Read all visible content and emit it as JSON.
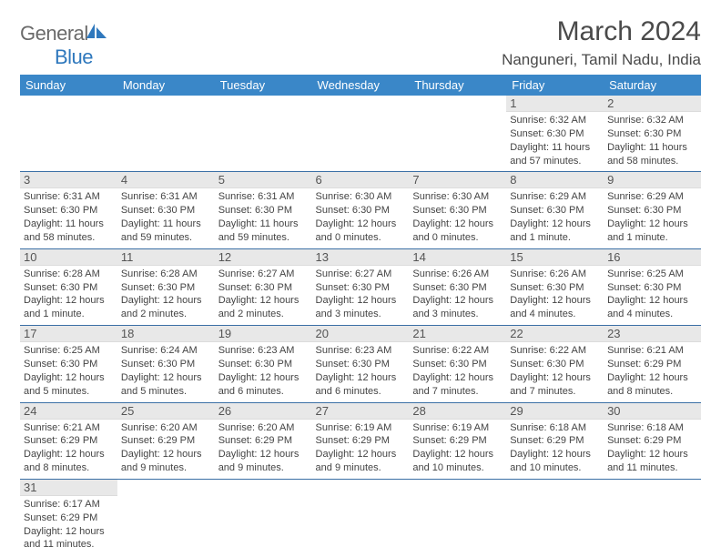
{
  "logo": {
    "general": "General",
    "blue": "Blue"
  },
  "title": "March 2024",
  "location": "Nanguneri, Tamil Nadu, India",
  "colors": {
    "header_bg": "#3a87c8",
    "header_text": "#ffffff",
    "daynum_bg": "#e8e8e8",
    "row_border": "#3a6fa5",
    "logo_gray": "#6a6a6a",
    "logo_blue": "#2f78bd",
    "body_text": "#444444"
  },
  "weekdays": [
    "Sunday",
    "Monday",
    "Tuesday",
    "Wednesday",
    "Thursday",
    "Friday",
    "Saturday"
  ],
  "cells": [
    {
      "day": "",
      "sunrise": "",
      "sunset": "",
      "daylight": ""
    },
    {
      "day": "",
      "sunrise": "",
      "sunset": "",
      "daylight": ""
    },
    {
      "day": "",
      "sunrise": "",
      "sunset": "",
      "daylight": ""
    },
    {
      "day": "",
      "sunrise": "",
      "sunset": "",
      "daylight": ""
    },
    {
      "day": "",
      "sunrise": "",
      "sunset": "",
      "daylight": ""
    },
    {
      "day": "1",
      "sunrise": "Sunrise: 6:32 AM",
      "sunset": "Sunset: 6:30 PM",
      "daylight": "Daylight: 11 hours and 57 minutes."
    },
    {
      "day": "2",
      "sunrise": "Sunrise: 6:32 AM",
      "sunset": "Sunset: 6:30 PM",
      "daylight": "Daylight: 11 hours and 58 minutes."
    },
    {
      "day": "3",
      "sunrise": "Sunrise: 6:31 AM",
      "sunset": "Sunset: 6:30 PM",
      "daylight": "Daylight: 11 hours and 58 minutes."
    },
    {
      "day": "4",
      "sunrise": "Sunrise: 6:31 AM",
      "sunset": "Sunset: 6:30 PM",
      "daylight": "Daylight: 11 hours and 59 minutes."
    },
    {
      "day": "5",
      "sunrise": "Sunrise: 6:31 AM",
      "sunset": "Sunset: 6:30 PM",
      "daylight": "Daylight: 11 hours and 59 minutes."
    },
    {
      "day": "6",
      "sunrise": "Sunrise: 6:30 AM",
      "sunset": "Sunset: 6:30 PM",
      "daylight": "Daylight: 12 hours and 0 minutes."
    },
    {
      "day": "7",
      "sunrise": "Sunrise: 6:30 AM",
      "sunset": "Sunset: 6:30 PM",
      "daylight": "Daylight: 12 hours and 0 minutes."
    },
    {
      "day": "8",
      "sunrise": "Sunrise: 6:29 AM",
      "sunset": "Sunset: 6:30 PM",
      "daylight": "Daylight: 12 hours and 1 minute."
    },
    {
      "day": "9",
      "sunrise": "Sunrise: 6:29 AM",
      "sunset": "Sunset: 6:30 PM",
      "daylight": "Daylight: 12 hours and 1 minute."
    },
    {
      "day": "10",
      "sunrise": "Sunrise: 6:28 AM",
      "sunset": "Sunset: 6:30 PM",
      "daylight": "Daylight: 12 hours and 1 minute."
    },
    {
      "day": "11",
      "sunrise": "Sunrise: 6:28 AM",
      "sunset": "Sunset: 6:30 PM",
      "daylight": "Daylight: 12 hours and 2 minutes."
    },
    {
      "day": "12",
      "sunrise": "Sunrise: 6:27 AM",
      "sunset": "Sunset: 6:30 PM",
      "daylight": "Daylight: 12 hours and 2 minutes."
    },
    {
      "day": "13",
      "sunrise": "Sunrise: 6:27 AM",
      "sunset": "Sunset: 6:30 PM",
      "daylight": "Daylight: 12 hours and 3 minutes."
    },
    {
      "day": "14",
      "sunrise": "Sunrise: 6:26 AM",
      "sunset": "Sunset: 6:30 PM",
      "daylight": "Daylight: 12 hours and 3 minutes."
    },
    {
      "day": "15",
      "sunrise": "Sunrise: 6:26 AM",
      "sunset": "Sunset: 6:30 PM",
      "daylight": "Daylight: 12 hours and 4 minutes."
    },
    {
      "day": "16",
      "sunrise": "Sunrise: 6:25 AM",
      "sunset": "Sunset: 6:30 PM",
      "daylight": "Daylight: 12 hours and 4 minutes."
    },
    {
      "day": "17",
      "sunrise": "Sunrise: 6:25 AM",
      "sunset": "Sunset: 6:30 PM",
      "daylight": "Daylight: 12 hours and 5 minutes."
    },
    {
      "day": "18",
      "sunrise": "Sunrise: 6:24 AM",
      "sunset": "Sunset: 6:30 PM",
      "daylight": "Daylight: 12 hours and 5 minutes."
    },
    {
      "day": "19",
      "sunrise": "Sunrise: 6:23 AM",
      "sunset": "Sunset: 6:30 PM",
      "daylight": "Daylight: 12 hours and 6 minutes."
    },
    {
      "day": "20",
      "sunrise": "Sunrise: 6:23 AM",
      "sunset": "Sunset: 6:30 PM",
      "daylight": "Daylight: 12 hours and 6 minutes."
    },
    {
      "day": "21",
      "sunrise": "Sunrise: 6:22 AM",
      "sunset": "Sunset: 6:30 PM",
      "daylight": "Daylight: 12 hours and 7 minutes."
    },
    {
      "day": "22",
      "sunrise": "Sunrise: 6:22 AM",
      "sunset": "Sunset: 6:30 PM",
      "daylight": "Daylight: 12 hours and 7 minutes."
    },
    {
      "day": "23",
      "sunrise": "Sunrise: 6:21 AM",
      "sunset": "Sunset: 6:29 PM",
      "daylight": "Daylight: 12 hours and 8 minutes."
    },
    {
      "day": "24",
      "sunrise": "Sunrise: 6:21 AM",
      "sunset": "Sunset: 6:29 PM",
      "daylight": "Daylight: 12 hours and 8 minutes."
    },
    {
      "day": "25",
      "sunrise": "Sunrise: 6:20 AM",
      "sunset": "Sunset: 6:29 PM",
      "daylight": "Daylight: 12 hours and 9 minutes."
    },
    {
      "day": "26",
      "sunrise": "Sunrise: 6:20 AM",
      "sunset": "Sunset: 6:29 PM",
      "daylight": "Daylight: 12 hours and 9 minutes."
    },
    {
      "day": "27",
      "sunrise": "Sunrise: 6:19 AM",
      "sunset": "Sunset: 6:29 PM",
      "daylight": "Daylight: 12 hours and 9 minutes."
    },
    {
      "day": "28",
      "sunrise": "Sunrise: 6:19 AM",
      "sunset": "Sunset: 6:29 PM",
      "daylight": "Daylight: 12 hours and 10 minutes."
    },
    {
      "day": "29",
      "sunrise": "Sunrise: 6:18 AM",
      "sunset": "Sunset: 6:29 PM",
      "daylight": "Daylight: 12 hours and 10 minutes."
    },
    {
      "day": "30",
      "sunrise": "Sunrise: 6:18 AM",
      "sunset": "Sunset: 6:29 PM",
      "daylight": "Daylight: 12 hours and 11 minutes."
    },
    {
      "day": "31",
      "sunrise": "Sunrise: 6:17 AM",
      "sunset": "Sunset: 6:29 PM",
      "daylight": "Daylight: 12 hours and 11 minutes."
    },
    {
      "day": "",
      "sunrise": "",
      "sunset": "",
      "daylight": ""
    },
    {
      "day": "",
      "sunrise": "",
      "sunset": "",
      "daylight": ""
    },
    {
      "day": "",
      "sunrise": "",
      "sunset": "",
      "daylight": ""
    },
    {
      "day": "",
      "sunrise": "",
      "sunset": "",
      "daylight": ""
    },
    {
      "day": "",
      "sunrise": "",
      "sunset": "",
      "daylight": ""
    },
    {
      "day": "",
      "sunrise": "",
      "sunset": "",
      "daylight": ""
    }
  ]
}
